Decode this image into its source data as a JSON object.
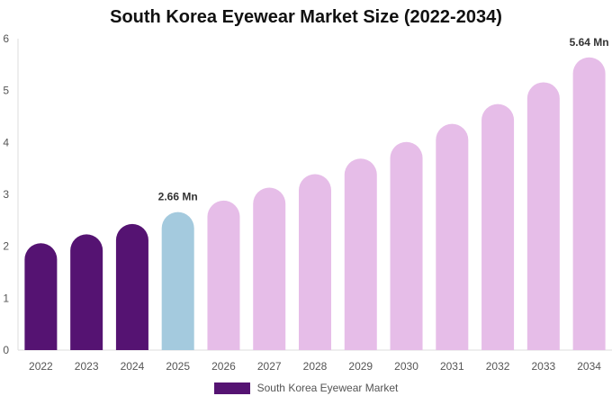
{
  "chart_data": {
    "type": "bar",
    "title": "South Korea Eyewear Market Size (2022-2034)",
    "xlabel": "",
    "ylabel": "",
    "categories": [
      "2022",
      "2023",
      "2024",
      "2025",
      "2026",
      "2027",
      "2028",
      "2029",
      "2030",
      "2031",
      "2032",
      "2033",
      "2034"
    ],
    "series": [
      {
        "name": "South Korea Eyewear Market",
        "values": [
          2.06,
          2.23,
          2.43,
          2.66,
          2.88,
          3.13,
          3.39,
          3.69,
          4.01,
          4.36,
          4.74,
          5.16,
          5.64
        ]
      }
    ],
    "bar_colors": [
      "#551372",
      "#551372",
      "#551372",
      "#a4cade",
      "#e6bde8",
      "#e6bde8",
      "#e6bde8",
      "#e6bde8",
      "#e6bde8",
      "#e6bde8",
      "#e6bde8",
      "#e6bde8",
      "#e6bde8"
    ],
    "data_labels": [
      {
        "category": "2025",
        "text": "2.66 Mn"
      },
      {
        "category": "2034",
        "text": "5.64 Mn"
      }
    ],
    "yticks": [
      "0",
      "1",
      "2",
      "3",
      "4",
      "5",
      "6"
    ],
    "ylim": [
      0,
      6
    ],
    "grid": false,
    "legend": {
      "position": "bottom-center",
      "label": "South Korea Eyewear Market",
      "color": "#551372"
    }
  }
}
